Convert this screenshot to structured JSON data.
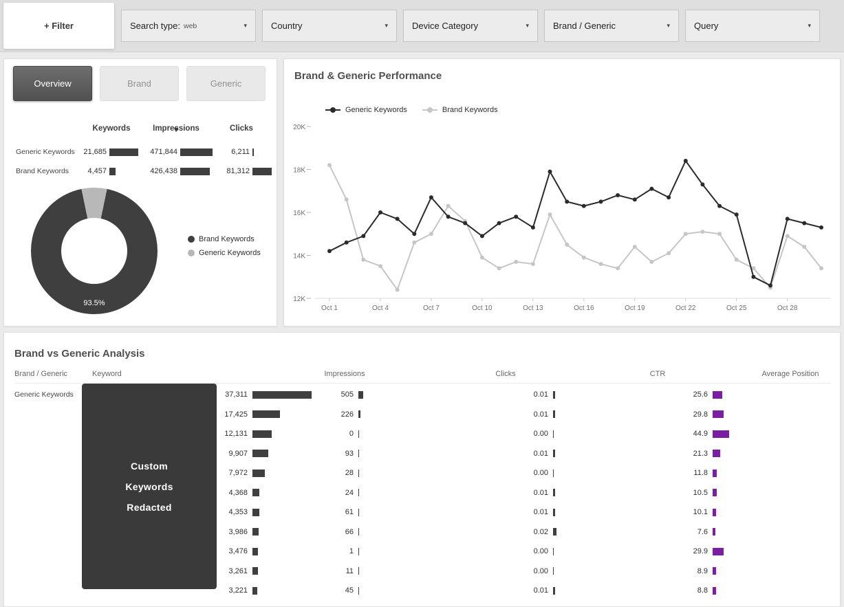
{
  "filter_bar": {
    "filter_button_label": "+ Filter",
    "dropdowns": [
      {
        "label": "Search type:",
        "value": "web"
      },
      {
        "label": "Country",
        "value": ""
      },
      {
        "label": "Device Category",
        "value": ""
      },
      {
        "label": "Brand / Generic",
        "value": ""
      },
      {
        "label": "Query",
        "value": ""
      }
    ]
  },
  "left_panel": {
    "tabs": [
      {
        "label": "Overview",
        "active": true
      },
      {
        "label": "Brand",
        "active": false
      },
      {
        "label": "Generic",
        "active": false
      }
    ],
    "table": {
      "headers": [
        "Keywords",
        "Impressions",
        "Clicks"
      ],
      "sorted_by": "Impressions",
      "bar_color": "#3f3f3f",
      "rows": [
        {
          "label": "Generic Keywords",
          "keywords": "21,685",
          "keywords_v": 21685,
          "impressions": "471,844",
          "impressions_v": 471844,
          "clicks": "6,211",
          "clicks_v": 6211
        },
        {
          "label": "Brand Keywords",
          "keywords": "4,457",
          "keywords_v": 4457,
          "impressions": "426,438",
          "impressions_v": 426438,
          "clicks": "81,312",
          "clicks_v": 81312
        }
      ]
    },
    "donut": {
      "center_label": "93.5%",
      "slices": [
        {
          "label": "Brand Keywords",
          "percent": 93.5,
          "color": "#3f3f3f"
        },
        {
          "label": "Generic Keywords",
          "percent": 6.5,
          "color": "#b8b8b8"
        }
      ]
    }
  },
  "performance_panel": {
    "title": "Brand & Generic Performance"
  },
  "chart_data": {
    "type": "line",
    "title": "Brand & Generic Performance",
    "ylim": [
      12000,
      20000
    ],
    "y_ticks": [
      {
        "v": 12000,
        "label": "12K"
      },
      {
        "v": 14000,
        "label": "14K"
      },
      {
        "v": 16000,
        "label": "16K"
      },
      {
        "v": 18000,
        "label": "18K"
      },
      {
        "v": 20000,
        "label": "20K"
      }
    ],
    "x": [
      "Oct 1",
      "Oct 2",
      "Oct 3",
      "Oct 4",
      "Oct 5",
      "Oct 6",
      "Oct 7",
      "Oct 8",
      "Oct 9",
      "Oct 10",
      "Oct 11",
      "Oct 12",
      "Oct 13",
      "Oct 14",
      "Oct 15",
      "Oct 16",
      "Oct 17",
      "Oct 18",
      "Oct 19",
      "Oct 20",
      "Oct 21",
      "Oct 22",
      "Oct 23",
      "Oct 24",
      "Oct 25",
      "Oct 26",
      "Oct 27",
      "Oct 28",
      "Oct 29",
      "Oct 30"
    ],
    "x_tick_indices": [
      0,
      3,
      6,
      9,
      12,
      15,
      18,
      21,
      24,
      27
    ],
    "grid": false,
    "legend_position": "top-left",
    "series": [
      {
        "name": "Generic Keywords",
        "color": "#2b2b2b",
        "values": [
          14200,
          14600,
          14900,
          16000,
          15700,
          15000,
          16700,
          15800,
          15500,
          14900,
          15500,
          15800,
          15300,
          17900,
          16500,
          16300,
          16500,
          16800,
          16600,
          17100,
          16700,
          18400,
          17300,
          16300,
          15900,
          13000,
          12600,
          15700,
          15500,
          15300
        ]
      },
      {
        "name": "Brand Keywords",
        "color": "#c6c6c6",
        "values": [
          18200,
          16600,
          13800,
          13500,
          12400,
          14600,
          15000,
          16300,
          15600,
          13900,
          13400,
          13700,
          13600,
          15900,
          14500,
          13900,
          13600,
          13400,
          14400,
          13700,
          14100,
          15000,
          15100,
          15000,
          13800,
          13400,
          12500,
          14900,
          14400,
          13400
        ]
      }
    ]
  },
  "analysis_panel": {
    "title": "Brand vs Generic Analysis",
    "headers": [
      "Brand / Generic",
      "Keyword",
      "Impressions",
      "Clicks",
      "CTR",
      "Average Position"
    ],
    "group_label": "Generic Keywords",
    "redaction_lines": [
      "Custom",
      "Keywords",
      "Redacted"
    ],
    "bar_color": "#3f3f3f",
    "position_bar_color": "#7b1fa2",
    "rows": [
      {
        "impressions": "37,311",
        "impressions_v": 37311,
        "clicks": "505",
        "clicks_v": 505,
        "ctr": "0.01",
        "ctr_v": 0.01,
        "avg_position": "25.6",
        "avg_position_v": 25.6
      },
      {
        "impressions": "17,425",
        "impressions_v": 17425,
        "clicks": "226",
        "clicks_v": 226,
        "ctr": "0.01",
        "ctr_v": 0.01,
        "avg_position": "29.8",
        "avg_position_v": 29.8
      },
      {
        "impressions": "12,131",
        "impressions_v": 12131,
        "clicks": "0",
        "clicks_v": 0,
        "ctr": "0.00",
        "ctr_v": 0.0,
        "avg_position": "44.9",
        "avg_position_v": 44.9
      },
      {
        "impressions": "9,907",
        "impressions_v": 9907,
        "clicks": "93",
        "clicks_v": 93,
        "ctr": "0.01",
        "ctr_v": 0.01,
        "avg_position": "21.3",
        "avg_position_v": 21.3
      },
      {
        "impressions": "7,972",
        "impressions_v": 7972,
        "clicks": "28",
        "clicks_v": 28,
        "ctr": "0.00",
        "ctr_v": 0.0,
        "avg_position": "11.8",
        "avg_position_v": 11.8
      },
      {
        "impressions": "4,368",
        "impressions_v": 4368,
        "clicks": "24",
        "clicks_v": 24,
        "ctr": "0.01",
        "ctr_v": 0.01,
        "avg_position": "10.5",
        "avg_position_v": 10.5
      },
      {
        "impressions": "4,353",
        "impressions_v": 4353,
        "clicks": "61",
        "clicks_v": 61,
        "ctr": "0.01",
        "ctr_v": 0.01,
        "avg_position": "10.1",
        "avg_position_v": 10.1
      },
      {
        "impressions": "3,986",
        "impressions_v": 3986,
        "clicks": "66",
        "clicks_v": 66,
        "ctr": "0.02",
        "ctr_v": 0.02,
        "avg_position": "7.6",
        "avg_position_v": 7.6
      },
      {
        "impressions": "3,476",
        "impressions_v": 3476,
        "clicks": "1",
        "clicks_v": 1,
        "ctr": "0.00",
        "ctr_v": 0.0,
        "avg_position": "29.9",
        "avg_position_v": 29.9
      },
      {
        "impressions": "3,261",
        "impressions_v": 3261,
        "clicks": "11",
        "clicks_v": 11,
        "ctr": "0.00",
        "ctr_v": 0.0,
        "avg_position": "8.9",
        "avg_position_v": 8.9
      },
      {
        "impressions": "3,221",
        "impressions_v": 3221,
        "clicks": "45",
        "clicks_v": 45,
        "ctr": "0.01",
        "ctr_v": 0.01,
        "avg_position": "8.8",
        "avg_position_v": 8.8
      }
    ]
  }
}
